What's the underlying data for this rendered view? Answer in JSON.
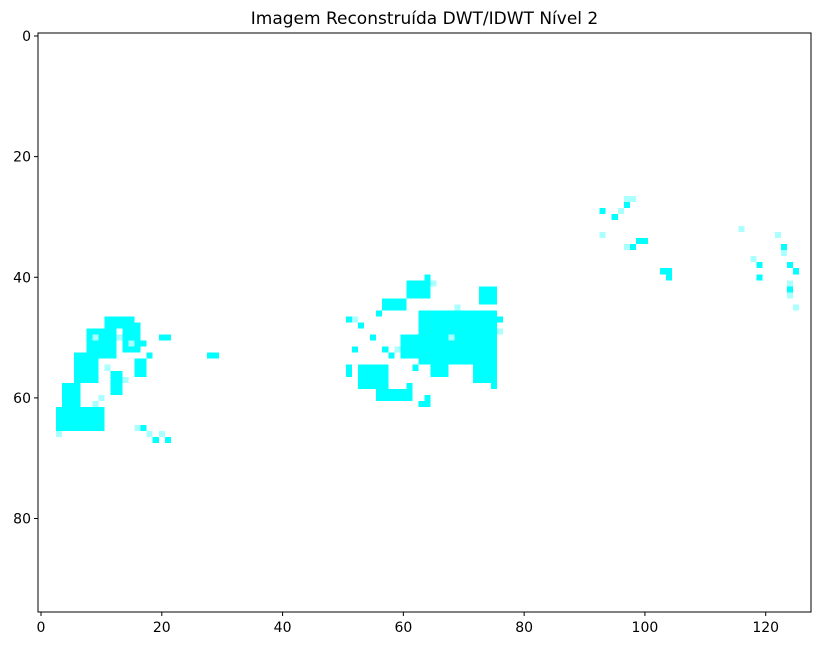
{
  "chart_data": {
    "type": "heatmap",
    "title": "Imagem Reconstruída DWT/IDWT Nível 2",
    "xlabel": "",
    "ylabel": "",
    "xlim": [
      -0.5,
      127.5
    ],
    "ylim": [
      95.5,
      -0.5
    ],
    "y_inverted": true,
    "grid": false,
    "colors": {
      "bright": "#00ffff",
      "faint": "#aaffff",
      "background": "#ffffff"
    },
    "xticks": [
      0,
      20,
      40,
      60,
      80,
      100,
      120
    ],
    "yticks": [
      0,
      20,
      40,
      60,
      80
    ],
    "regions": [
      {
        "x": [
          3,
          10
        ],
        "y": [
          62,
          65
        ],
        "level": "bright"
      },
      {
        "x": [
          4,
          6
        ],
        "y": [
          58,
          61
        ],
        "level": "bright"
      },
      {
        "x": [
          6,
          9
        ],
        "y": [
          53,
          57
        ],
        "level": "bright"
      },
      {
        "x": [
          8,
          12
        ],
        "y": [
          49,
          53
        ],
        "level": "bright"
      },
      {
        "x": [
          11,
          15
        ],
        "y": [
          47,
          48
        ],
        "level": "bright"
      },
      {
        "x": [
          14,
          16
        ],
        "y": [
          48,
          52
        ],
        "level": "bright"
      },
      {
        "x": [
          16,
          17
        ],
        "y": [
          54,
          56
        ],
        "level": "bright"
      },
      {
        "x": [
          12,
          13
        ],
        "y": [
          56,
          59
        ],
        "level": "bright"
      },
      {
        "x": [
          63,
          75
        ],
        "y": [
          46,
          54
        ],
        "level": "bright"
      },
      {
        "x": [
          60,
          62
        ],
        "y": [
          50,
          53
        ],
        "level": "bright"
      },
      {
        "x": [
          72,
          75
        ],
        "y": [
          54,
          57
        ],
        "level": "bright"
      },
      {
        "x": [
          65,
          67
        ],
        "y": [
          54,
          56
        ],
        "level": "bright"
      },
      {
        "x": [
          56,
          61
        ],
        "y": [
          59,
          60
        ],
        "level": "bright"
      },
      {
        "x": [
          53,
          57
        ],
        "y": [
          55,
          58
        ],
        "level": "bright"
      },
      {
        "x": [
          61,
          64
        ],
        "y": [
          41,
          43
        ],
        "level": "bright"
      },
      {
        "x": [
          57,
          60
        ],
        "y": [
          44,
          45
        ],
        "level": "bright"
      },
      {
        "x": [
          73,
          75
        ],
        "y": [
          42,
          44
        ],
        "level": "bright"
      }
    ],
    "pixels": [
      [
        3,
        66,
        "faint"
      ],
      [
        9,
        61,
        "faint"
      ],
      [
        10,
        60,
        "faint"
      ],
      [
        11,
        55,
        "faint"
      ],
      [
        14,
        57,
        "faint"
      ],
      [
        15,
        51,
        "faint"
      ],
      [
        13,
        50,
        "faint"
      ],
      [
        9,
        50,
        "faint"
      ],
      [
        17,
        51,
        "bright"
      ],
      [
        18,
        53,
        "bright"
      ],
      [
        20,
        50,
        "bright"
      ],
      [
        21,
        50,
        "bright"
      ],
      [
        28,
        53,
        "bright"
      ],
      [
        29,
        53,
        "bright"
      ],
      [
        17,
        65,
        "bright"
      ],
      [
        18,
        66,
        "faint"
      ],
      [
        16,
        65,
        "faint"
      ],
      [
        19,
        67,
        "bright"
      ],
      [
        20,
        66,
        "faint"
      ],
      [
        21,
        67,
        "bright"
      ],
      [
        51,
        47,
        "bright"
      ],
      [
        52,
        47,
        "faint"
      ],
      [
        53,
        48,
        "bright"
      ],
      [
        52,
        52,
        "bright"
      ],
      [
        51,
        55,
        "bright"
      ],
      [
        51,
        56,
        "bright"
      ],
      [
        55,
        50,
        "bright"
      ],
      [
        56,
        46,
        "bright"
      ],
      [
        58,
        53,
        "bright"
      ],
      [
        57,
        52,
        "bright"
      ],
      [
        62,
        55,
        "bright"
      ],
      [
        64,
        60,
        "bright"
      ],
      [
        63,
        61,
        "bright"
      ],
      [
        64,
        61,
        "bright"
      ],
      [
        64,
        40,
        "bright"
      ],
      [
        65,
        41,
        "faint"
      ],
      [
        75,
        58,
        "bright"
      ],
      [
        69,
        45,
        "faint"
      ],
      [
        76,
        47,
        "bright"
      ],
      [
        76,
        49,
        "faint"
      ],
      [
        59,
        52,
        "faint"
      ],
      [
        68,
        50,
        "faint"
      ],
      [
        61,
        58,
        "bright"
      ],
      [
        97,
        27,
        "faint"
      ],
      [
        98,
        27,
        "faint"
      ],
      [
        97,
        28,
        "bright"
      ],
      [
        96,
        29,
        "faint"
      ],
      [
        93,
        29,
        "bright"
      ],
      [
        95,
        30,
        "bright"
      ],
      [
        93,
        33,
        "faint"
      ],
      [
        99,
        34,
        "bright"
      ],
      [
        100,
        34,
        "bright"
      ],
      [
        98,
        35,
        "bright"
      ],
      [
        97,
        35,
        "faint"
      ],
      [
        103,
        39,
        "bright"
      ],
      [
        104,
        39,
        "bright"
      ],
      [
        104,
        40,
        "bright"
      ],
      [
        116,
        32,
        "faint"
      ],
      [
        122,
        33,
        "faint"
      ],
      [
        123,
        35,
        "bright"
      ],
      [
        123,
        36,
        "faint"
      ],
      [
        118,
        37,
        "faint"
      ],
      [
        119,
        38,
        "bright"
      ],
      [
        124,
        38,
        "bright"
      ],
      [
        125,
        39,
        "bright"
      ],
      [
        119,
        40,
        "bright"
      ],
      [
        124,
        41,
        "faint"
      ],
      [
        124,
        42,
        "bright"
      ],
      [
        124,
        43,
        "faint"
      ],
      [
        125,
        45,
        "faint"
      ]
    ]
  }
}
